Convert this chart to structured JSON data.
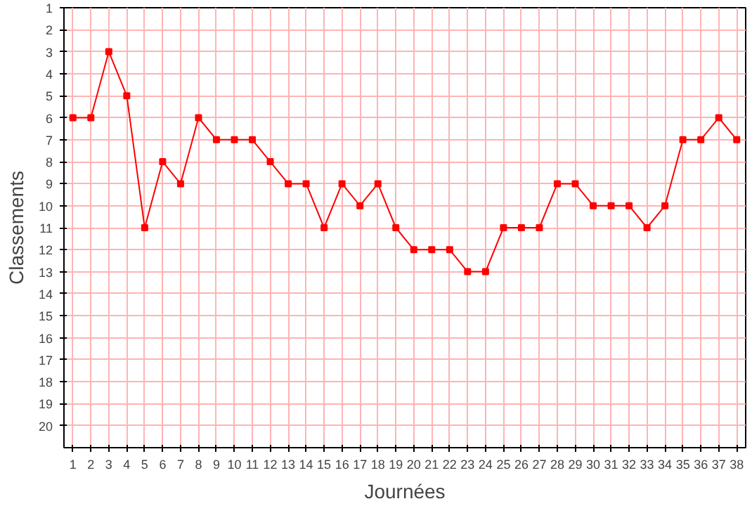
{
  "chart_data": {
    "type": "line",
    "xlabel": "Journées",
    "ylabel": "Classements",
    "x": [
      1,
      2,
      3,
      4,
      5,
      6,
      7,
      8,
      9,
      10,
      11,
      12,
      13,
      14,
      15,
      16,
      17,
      18,
      19,
      20,
      21,
      22,
      23,
      24,
      25,
      26,
      27,
      28,
      29,
      30,
      31,
      32,
      33,
      34,
      35,
      36,
      37,
      38
    ],
    "series": [
      {
        "color": "#ff0000",
        "values": [
          6,
          6,
          3,
          5,
          11,
          8,
          9,
          6,
          7,
          7,
          7,
          8,
          9,
          9,
          11,
          9,
          10,
          9,
          11,
          12,
          12,
          12,
          13,
          13,
          11,
          11,
          11,
          9,
          9,
          10,
          10,
          10,
          11,
          10,
          7,
          7,
          6,
          7
        ]
      }
    ],
    "xlim": [
      0.5,
      38.5
    ],
    "xticks": [
      1,
      2,
      3,
      4,
      5,
      6,
      7,
      8,
      9,
      10,
      11,
      12,
      13,
      14,
      15,
      16,
      17,
      18,
      19,
      20,
      21,
      22,
      23,
      24,
      25,
      26,
      27,
      28,
      29,
      30,
      31,
      32,
      33,
      34,
      35,
      36,
      37,
      38
    ],
    "ylim": [
      21,
      1
    ],
    "yticks": [
      1,
      2,
      3,
      4,
      5,
      6,
      7,
      8,
      9,
      10,
      11,
      12,
      13,
      14,
      15,
      16,
      17,
      18,
      19,
      20
    ],
    "grid": true,
    "marker": "square",
    "line_style": "solid"
  }
}
